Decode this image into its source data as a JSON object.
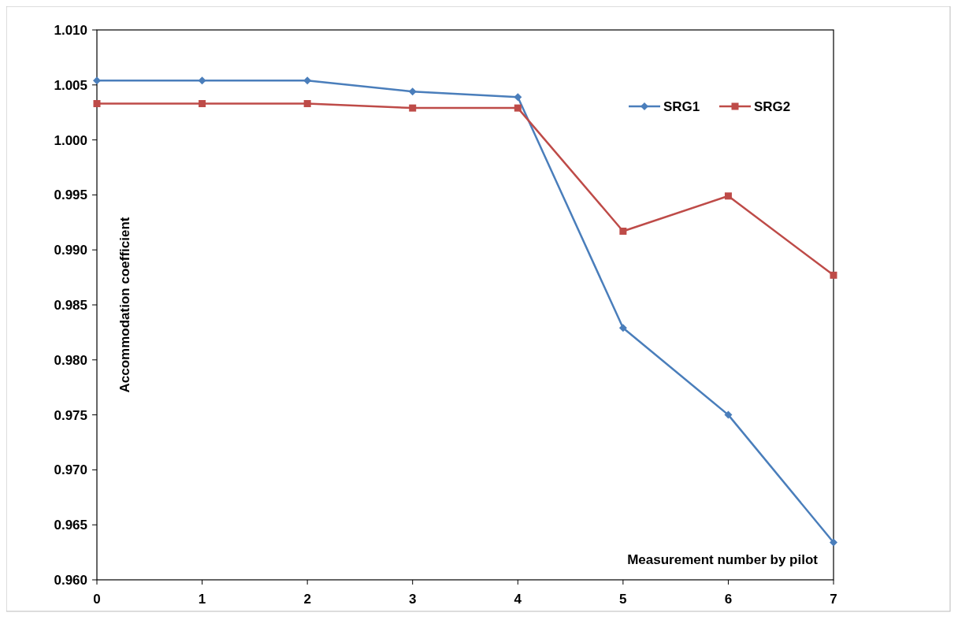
{
  "chart_data": {
    "type": "line",
    "xlabel": "Measurement number by pilot",
    "ylabel": "Accommodation coefficient",
    "x": [
      0,
      1,
      2,
      3,
      4,
      5,
      6,
      7
    ],
    "series": [
      {
        "name": "SRG1",
        "color": "#4a7ebb",
        "marker": "diamond",
        "values": [
          1.0054,
          1.0054,
          1.0054,
          1.0044,
          1.0039,
          0.9829,
          0.975,
          0.9634
        ]
      },
      {
        "name": "SRG2",
        "color": "#be4b48",
        "marker": "square",
        "values": [
          1.0033,
          1.0033,
          1.0033,
          1.0029,
          1.0029,
          0.9917,
          0.9949,
          0.9877
        ]
      }
    ],
    "xlim": [
      0,
      7
    ],
    "xticks": [
      0,
      1,
      2,
      3,
      4,
      5,
      6,
      7
    ],
    "ylim": [
      0.96,
      1.01
    ],
    "yticks": [
      {
        "value": 0.96,
        "label": "0.960"
      },
      {
        "value": 0.965,
        "label": "0.965"
      },
      {
        "value": 0.97,
        "label": "0.970"
      },
      {
        "value": 0.975,
        "label": "0.975"
      },
      {
        "value": 0.98,
        "label": "0.980"
      },
      {
        "value": 0.985,
        "label": "0.985"
      },
      {
        "value": 0.99,
        "label": "0.990"
      },
      {
        "value": 0.995,
        "label": "0.995"
      },
      {
        "value": 1.0,
        "label": "1.000"
      },
      {
        "value": 1.005,
        "label": "1.005"
      },
      {
        "value": 1.01,
        "label": "1.010"
      }
    ],
    "grid": false,
    "legend": "top right",
    "line_style": "solid"
  }
}
